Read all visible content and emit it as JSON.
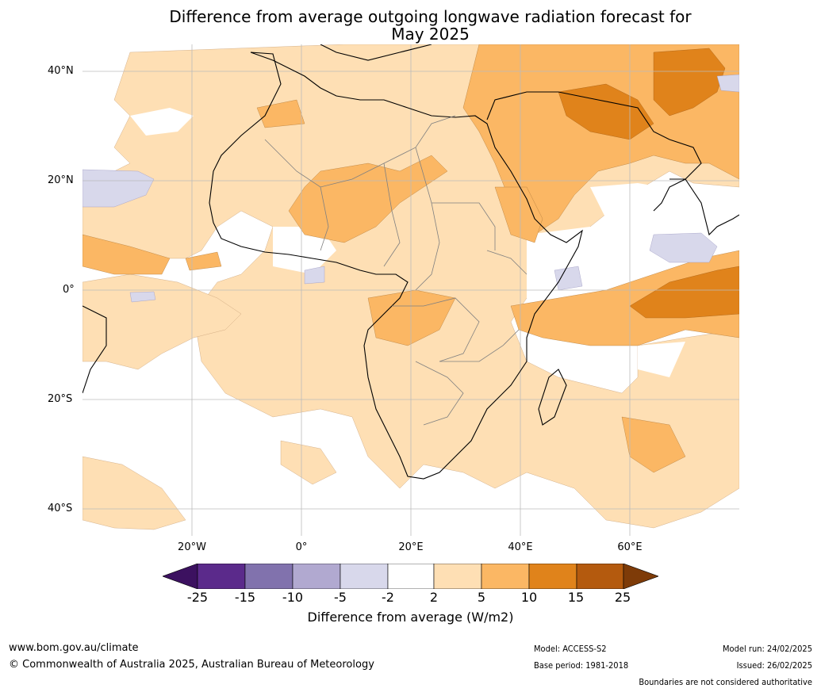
{
  "title_line1": "Difference from average outgoing longwave radiation forecast for",
  "title_line2": "May 2025",
  "lat_labels": [
    "40°N",
    "20°N",
    "0°",
    "20°S",
    "40°S"
  ],
  "lon_labels": [
    "20°W",
    "0°",
    "20°E",
    "40°E",
    "60°E"
  ],
  "colorbar": {
    "ticks": [
      "-25",
      "-15",
      "-10",
      "-5",
      "-2",
      "2",
      "5",
      "10",
      "15",
      "25"
    ],
    "colors": [
      "#3c1160",
      "#5b2a8b",
      "#8172ad",
      "#b1a9d0",
      "#d8d8eb",
      "#ffffff",
      "#fedfb4",
      "#fbb764",
      "#e0831b",
      "#b45a0e",
      "#7e3b08"
    ],
    "title": "Difference from average (W/m2)"
  },
  "footer": {
    "url": "www.bom.gov.au/climate",
    "copyright": "© Commonwealth of Australia 2025, Australian Bureau of Meteorology",
    "model": "Model: ACCESS-S2",
    "base_period": "Base period: 1981-2018",
    "model_run": "Model run: 24/02/2025",
    "issued": "Issued: 26/02/2025",
    "disclaimer": "Boundaries are not considered authoritative"
  }
}
